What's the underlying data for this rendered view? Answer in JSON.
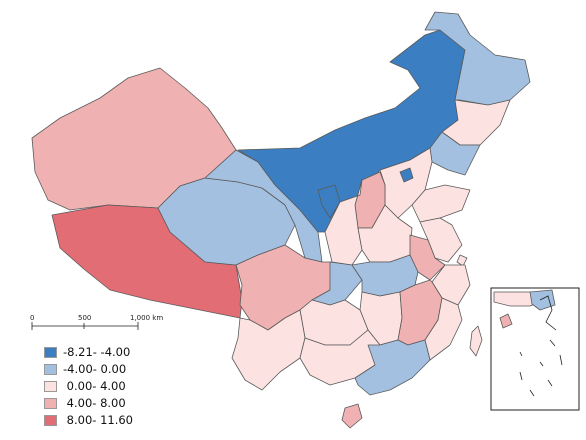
{
  "colors": {
    "c1": "#3b7ec2",
    "c2": "#a3c0e0",
    "c3": "#fde2e2",
    "c4": "#efb1b1",
    "c5": "#e36d75"
  },
  "scale_bar": {
    "ticks": [
      "0",
      "500",
      "1,000 km"
    ]
  },
  "legend": [
    {
      "label": "-8.21- -4.00",
      "color": "#3b7ec2"
    },
    {
      "label": "-4.00- 0.00",
      "color": "#a3c0e0"
    },
    {
      "label": " 0.00- 4.00",
      "color": "#fde2e2"
    },
    {
      "label": " 4.00- 8.00",
      "color": "#efb1b1"
    },
    {
      "label": " 8.00- 11.60",
      "color": "#e36d75"
    }
  ]
}
